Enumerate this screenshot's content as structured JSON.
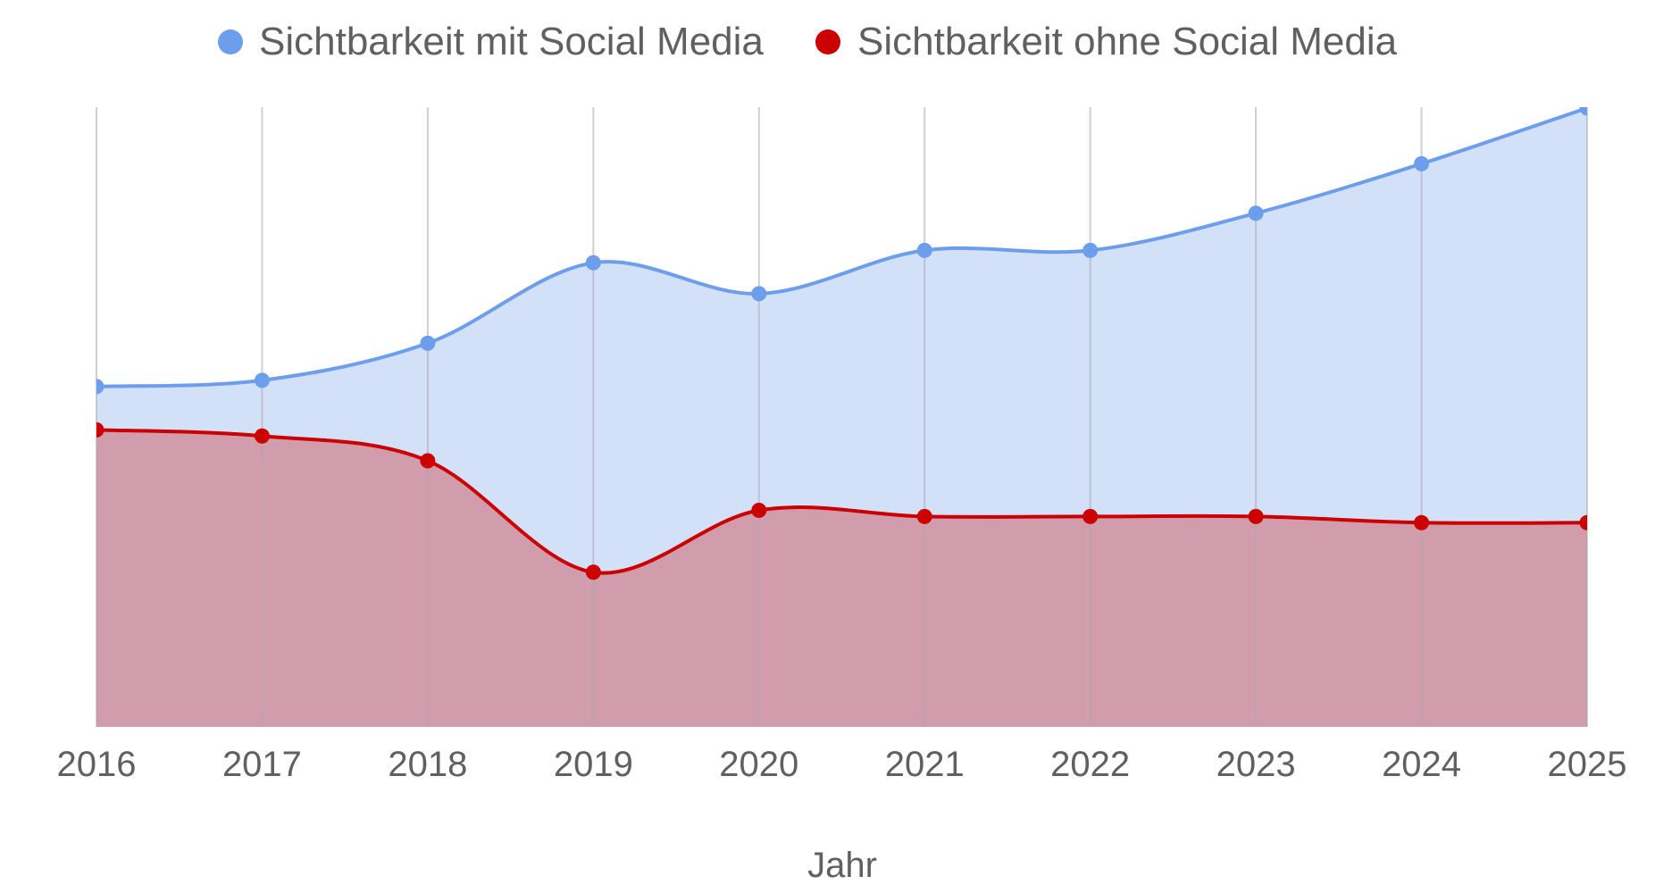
{
  "chart_data": {
    "type": "area",
    "title": "",
    "xlabel": "Jahr",
    "ylabel": "",
    "categories": [
      "2016",
      "2017",
      "2018",
      "2019",
      "2020",
      "2021",
      "2022",
      "2023",
      "2024",
      "2025"
    ],
    "ylim": [
      0,
      100
    ],
    "grid": "vertical",
    "legend_position": "top",
    "smooth": true,
    "series": [
      {
        "name": "Sichtbarkeit mit Social Media",
        "color": "#6d9eeb",
        "fill": "#d3e1f8",
        "values": [
          55,
          56,
          62,
          75,
          70,
          77,
          77,
          83,
          91,
          100
        ]
      },
      {
        "name": "Sichtbarkeit ohne Social Media",
        "color": "#cc0000",
        "fill": "#d19cac",
        "values": [
          48,
          47,
          43,
          25,
          35,
          34,
          34,
          34,
          33,
          33
        ]
      }
    ]
  }
}
